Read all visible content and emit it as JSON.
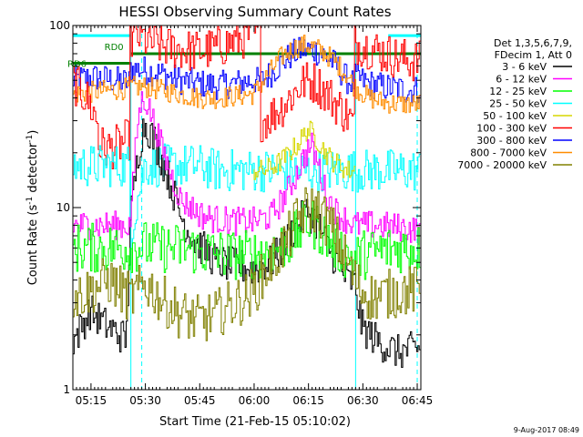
{
  "chart_data": {
    "type": "line",
    "title": "HESSI Observing Summary Count Rates",
    "xlabel": "Start Time (21-Feb-15 05:10:02)",
    "ylabel": "Count Rate (s",
    "ylabel_sup": "-1",
    "ylabel_tail": " detector",
    "ylabel_close": ")",
    "yscale": "log",
    "ylim": [
      1,
      100
    ],
    "y_ticks": [
      {
        "v": 1,
        "label": "1"
      },
      {
        "v": 10,
        "label": "10"
      },
      {
        "v": 100,
        "label": "100"
      }
    ],
    "xlim": [
      0,
      96
    ],
    "x_ticks": [
      {
        "v": 5,
        "label": "05:15"
      },
      {
        "v": 20,
        "label": "05:30"
      },
      {
        "v": 35,
        "label": "05:45"
      },
      {
        "v": 50,
        "label": "06:00"
      },
      {
        "v": 65,
        "label": "06:15"
      },
      {
        "v": 80,
        "label": "06:30"
      },
      {
        "v": 95,
        "label": "06:45"
      }
    ],
    "legend": {
      "header": [
        "Det 1,3,5,6,7,9,",
        "FDecim 1, Att 0"
      ],
      "entries": [
        {
          "label": "3 - 6 keV",
          "color": "#000000"
        },
        {
          "label": "6 - 12 keV",
          "color": "#ff00ff"
        },
        {
          "label": "12 - 25 keV",
          "color": "#00ff00"
        },
        {
          "label": "25 - 50 keV",
          "color": "#00ffff"
        },
        {
          "label": "50 - 100 keV",
          "color": "#d7d700"
        },
        {
          "label": "100 - 300 keV",
          "color": "#ff0000"
        },
        {
          "label": "300 - 800 keV",
          "color": "#0000ff"
        },
        {
          "label": "800 - 7000 keV",
          "color": "#ff8c00"
        },
        {
          "label": "7000 - 20000 keV",
          "color": "#808000"
        }
      ]
    },
    "annotations": {
      "rd0": {
        "label": "RD0",
        "x": [
          16,
          96
        ],
        "y": 70,
        "color": "#008000"
      },
      "rd6": {
        "label": "RD6",
        "x": [
          0,
          16
        ],
        "y": 62,
        "color": "#008000"
      },
      "saa_bar": {
        "color": "#00ffff",
        "y": 88,
        "segments": [
          [
            0,
            16
          ],
          [
            87,
            96
          ]
        ]
      },
      "night_lines": [
        {
          "x": 0,
          "color": "#00ffff",
          "style": "solid"
        },
        {
          "x": 16,
          "color": "#00ffff",
          "style": "solid"
        },
        {
          "x": 19,
          "color": "#00ffff",
          "style": "dashed"
        },
        {
          "x": 78,
          "color": "#00ffff",
          "style": "solid"
        },
        {
          "x": 95,
          "color": "#00ffff",
          "style": "dashed"
        }
      ]
    },
    "series": [
      {
        "label": "300 - 800 keV",
        "color": "#0000ff",
        "x": [
          0,
          3,
          6,
          9,
          12,
          15,
          16,
          16,
          20,
          25,
          30,
          35,
          40,
          45,
          50,
          52,
          55,
          58,
          61,
          64,
          67,
          70,
          73,
          76,
          78,
          78,
          82,
          86,
          90,
          93,
          96
        ],
        "y": [
          50,
          51,
          52,
          51,
          50,
          49,
          49,
          58,
          57,
          54,
          50,
          48,
          47,
          48,
          50,
          49,
          55,
          63,
          70,
          74,
          73,
          68,
          60,
          50,
          48,
          52,
          48,
          46,
          45,
          44,
          45
        ],
        "noise": 0.08
      },
      {
        "label": "800 - 7000 keV",
        "color": "#ff8c00",
        "x": [
          0,
          5,
          10,
          15,
          16,
          20,
          25,
          30,
          35,
          40,
          45,
          50,
          52,
          55,
          58,
          61,
          64,
          67,
          70,
          73,
          76,
          78,
          82,
          86,
          90,
          96
        ],
        "y": [
          42,
          43,
          44,
          45,
          46,
          46,
          44,
          42,
          40,
          40,
          41,
          42,
          47,
          57,
          68,
          75,
          78,
          76,
          70,
          62,
          53,
          46,
          40,
          38,
          37,
          37
        ],
        "noise": 0.06
      },
      {
        "label": "100 - 300 keV",
        "color": "#ff0000",
        "x": [
          0,
          4,
          7,
          7,
          10,
          13,
          16,
          16,
          18,
          22,
          26,
          30,
          34,
          38,
          42,
          46,
          50,
          52,
          52,
          55,
          58,
          61,
          64,
          67,
          70,
          73,
          76,
          78,
          78,
          80,
          85,
          90,
          96
        ],
        "y": [
          50,
          40,
          30,
          22,
          21,
          22,
          24,
          82,
          88,
          80,
          76,
          74,
          72,
          74,
          78,
          84,
          90,
          88,
          30,
          32,
          36,
          42,
          49,
          49,
          43,
          37,
          32,
          28,
          80,
          78,
          72,
          66,
          63
        ],
        "noise": 0.12
      },
      {
        "label": "25 - 50 keV",
        "color": "#00ffff",
        "x": [
          0,
          5,
          10,
          16,
          16,
          20,
          25,
          30,
          35,
          40,
          45,
          50,
          55,
          60,
          63,
          65,
          67,
          70,
          73,
          76,
          78,
          78,
          82,
          86,
          90,
          96
        ],
        "y": [
          17,
          17,
          17,
          17,
          7,
          17,
          17,
          17,
          17,
          16,
          16,
          16,
          16,
          16,
          16,
          16,
          16,
          16,
          16,
          16,
          16,
          16,
          16,
          16,
          16,
          16
        ],
        "noise": 0.12
      },
      {
        "label": "50 - 100 keV",
        "color": "#d7d700",
        "x": [
          50,
          53,
          56,
          59,
          62,
          64,
          65,
          66,
          68,
          70,
          72,
          74,
          76,
          78
        ],
        "y": [
          16,
          16,
          17,
          19,
          22,
          25,
          27,
          26,
          23,
          20,
          18,
          17,
          16,
          16
        ],
        "noise": 0.06
      },
      {
        "label": "3 - 6 keV",
        "color": "#000000",
        "x": [
          0,
          5,
          10,
          15,
          16,
          17,
          18,
          19,
          20,
          21,
          22,
          24,
          26,
          28,
          30,
          32,
          34,
          36,
          38,
          40,
          45,
          50,
          55,
          58,
          60,
          62,
          64,
          65,
          66,
          68,
          70,
          72,
          74,
          76,
          78,
          80,
          85,
          90,
          96
        ],
        "y": [
          1.8,
          2.7,
          2.2,
          1.9,
          8,
          12,
          18,
          24,
          29,
          27,
          25,
          20,
          16,
          12,
          9,
          7.5,
          6.5,
          6,
          5.5,
          5,
          4.8,
          4.6,
          5,
          6,
          7,
          8,
          9,
          9.5,
          9,
          8,
          6.5,
          5.5,
          4.6,
          4,
          3.8,
          2.2,
          1.8,
          1.6,
          1.7
        ],
        "noise": 0.1
      },
      {
        "label": "6 - 12 keV",
        "color": "#ff00ff",
        "x": [
          0,
          5,
          10,
          16,
          17,
          18,
          19,
          20,
          21,
          22,
          24,
          26,
          28,
          30,
          33,
          36,
          40,
          45,
          50,
          55,
          58,
          61,
          64,
          66,
          68,
          70,
          72,
          74,
          76,
          78,
          80,
          85,
          90,
          96
        ],
        "y": [
          8,
          8,
          8,
          8,
          15,
          28,
          38,
          40,
          36,
          32,
          24,
          18,
          14,
          11,
          10,
          9,
          8.6,
          8.4,
          8.4,
          9,
          11,
          14,
          19,
          22,
          17,
          12,
          10,
          9,
          8.5,
          8,
          8,
          8,
          7.8,
          7.5
        ],
        "noise": 0.08
      },
      {
        "label": "12 - 25 keV",
        "color": "#00ff00",
        "x": [
          0,
          5,
          10,
          16,
          20,
          25,
          30,
          35,
          40,
          45,
          50,
          55,
          60,
          63,
          65,
          67,
          70,
          73,
          76,
          78,
          80,
          85,
          90,
          96
        ],
        "y": [
          6,
          6,
          6,
          6,
          6.2,
          6,
          6,
          5.8,
          5.6,
          5.5,
          5.5,
          5.8,
          6.5,
          7.5,
          8.5,
          8,
          7,
          6,
          5.5,
          5.2,
          5.5,
          5.8,
          6,
          6
        ],
        "noise": 0.14
      },
      {
        "label": "7000 - 20000 keV",
        "color": "#808000",
        "x": [
          0,
          3,
          5,
          8,
          10,
          13,
          16,
          18,
          20,
          22,
          24,
          26,
          28,
          30,
          32,
          35,
          38,
          40,
          42,
          45,
          48,
          50,
          52,
          55,
          58,
          60,
          62,
          64,
          66,
          68,
          70,
          72,
          74,
          76,
          78,
          80,
          83,
          86,
          89,
          92,
          96
        ],
        "y": [
          3.2,
          3.4,
          3.5,
          3.8,
          4,
          3.6,
          3.2,
          3.4,
          3.8,
          3.6,
          3.2,
          3,
          2.8,
          2.6,
          2.5,
          2.4,
          2.5,
          2.6,
          2.8,
          3,
          3.2,
          3.5,
          4,
          5,
          6,
          7,
          8.5,
          9.5,
          10,
          9.5,
          8.5,
          7.5,
          6,
          5,
          4,
          3.5,
          3.2,
          3.3,
          3.4,
          3.5,
          3.5
        ],
        "noise": 0.14
      }
    ]
  },
  "footer": {
    "datestamp": "9-Aug-2017 08:49"
  }
}
